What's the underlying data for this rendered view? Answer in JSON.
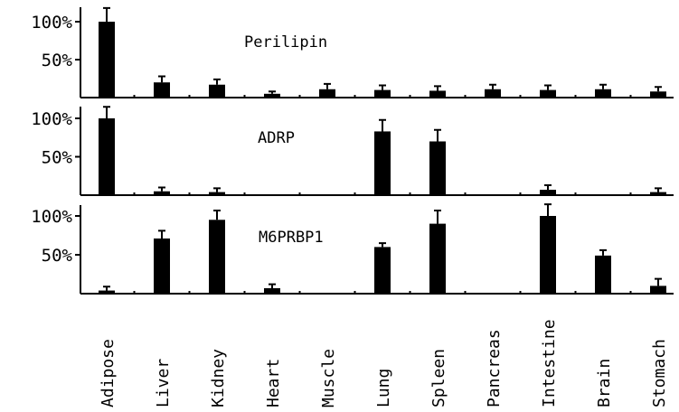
{
  "chart_data": {
    "type": "bar",
    "categories": [
      "Adipose",
      "Liver",
      "Kidney",
      "Heart",
      "Muscle",
      "Lung",
      "Spleen",
      "Pancreas",
      "Intestine",
      "Brain",
      "Stomach"
    ],
    "ylim": [
      0,
      110
    ],
    "yticks": [
      50,
      100
    ],
    "ytick_labels": [
      "50%",
      "100%"
    ],
    "grid": false,
    "legend": "none",
    "bar_color": "#000000",
    "panels": [
      {
        "title": "Perilipin",
        "values": [
          100,
          20,
          17,
          5,
          11,
          10,
          9,
          11,
          10,
          11,
          8
        ],
        "errors": [
          18,
          8,
          7,
          3,
          7,
          6,
          6,
          6,
          6,
          6,
          6
        ]
      },
      {
        "title": "ADRP",
        "values": [
          100,
          5,
          4,
          0,
          0,
          83,
          70,
          0,
          7,
          0,
          4
        ],
        "errors": [
          15,
          5,
          5,
          0,
          0,
          15,
          15,
          0,
          6,
          0,
          5
        ]
      },
      {
        "title": "M6PRBP1",
        "values": [
          4,
          71,
          95,
          7,
          0,
          60,
          90,
          0,
          100,
          49,
          10
        ],
        "errors": [
          5,
          10,
          12,
          5,
          0,
          5,
          17,
          0,
          15,
          7,
          9
        ]
      }
    ]
  }
}
